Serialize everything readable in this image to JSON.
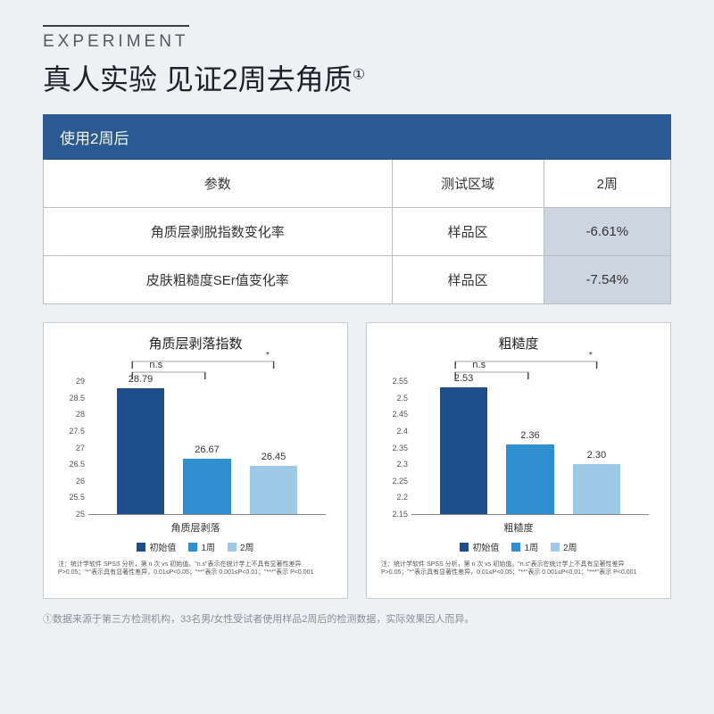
{
  "header": {
    "eyebrow": "EXPERIMENT",
    "headline": "真人实验 见证2周去角质",
    "headline_sup": "①"
  },
  "table": {
    "banner": "使用2周后",
    "cols": [
      "参数",
      "测试区域",
      "2周"
    ],
    "rows": [
      {
        "param": "角质层剥脱指数变化率",
        "area": "样品区",
        "value": "-6.61%"
      },
      {
        "param": "皮肤粗糙度SEr值变化率",
        "area": "样品区",
        "value": "-7.54%"
      }
    ],
    "highlight_col_bg": "#ccd5e0",
    "banner_bg": "#2a5a91",
    "banner_fg": "#f2f6fa",
    "border_color": "#b9bec4"
  },
  "charts": {
    "common": {
      "type": "bar",
      "bar_width_pct": 20,
      "bar_positions_pct": [
        12,
        40,
        68
      ],
      "colors": [
        "#1f4e8c",
        "#2f8fd0",
        "#9ec9e6"
      ],
      "legend_labels": [
        "初始值",
        "1周",
        "2周"
      ],
      "sig_marks": {
        "ns_label": "n.s",
        "star_label": "*"
      },
      "background": "#ffffff",
      "border_color": "#c7ccd2",
      "title_fontsize": 15,
      "tick_fontsize": 9,
      "value_label_fontsize": 11
    },
    "left": {
      "title": "角质层剥落指数",
      "x_label": "角质层剥落",
      "values": [
        28.79,
        26.67,
        26.45
      ],
      "ylim": [
        25,
        29
      ],
      "yticks": [
        25,
        25.5,
        26,
        26.5,
        27,
        27.5,
        28,
        28.5,
        29
      ],
      "footnote": "注：统计学软件 SPSS 分析，第 n 次 vs 初始值。\"n.s\"表示在统计学上不具有显著性差异 P>0.05；\"*\"表示具有显著性差异，0.01≤P<0.05；\"**\"表示 0.001≤P<0.01；\"***\"表示 P<0.001"
    },
    "right": {
      "title": "粗糙度",
      "x_label": "粗糙度",
      "values": [
        2.53,
        2.36,
        2.3
      ],
      "ylim": [
        2.15,
        2.55
      ],
      "yticks": [
        2.15,
        2.2,
        2.25,
        2.3,
        2.35,
        2.4,
        2.45,
        2.5,
        2.55
      ],
      "footnote": "注：统计学软件 SPSS 分析，第 n 次 vs 初始值。\"n.s\"表示在统计学上不具有显著性差异 P>0.05；\"*\"表示具有显著性差异，0.01≤P<0.05；\"**\"表示 0.001≤P<0.01；\"***\"表示 P<0.001"
    }
  },
  "footnote": "①数据来源于第三方检测机构，33名男/女性受试者使用样品2周后的检测数据，实际效果因人而异。"
}
